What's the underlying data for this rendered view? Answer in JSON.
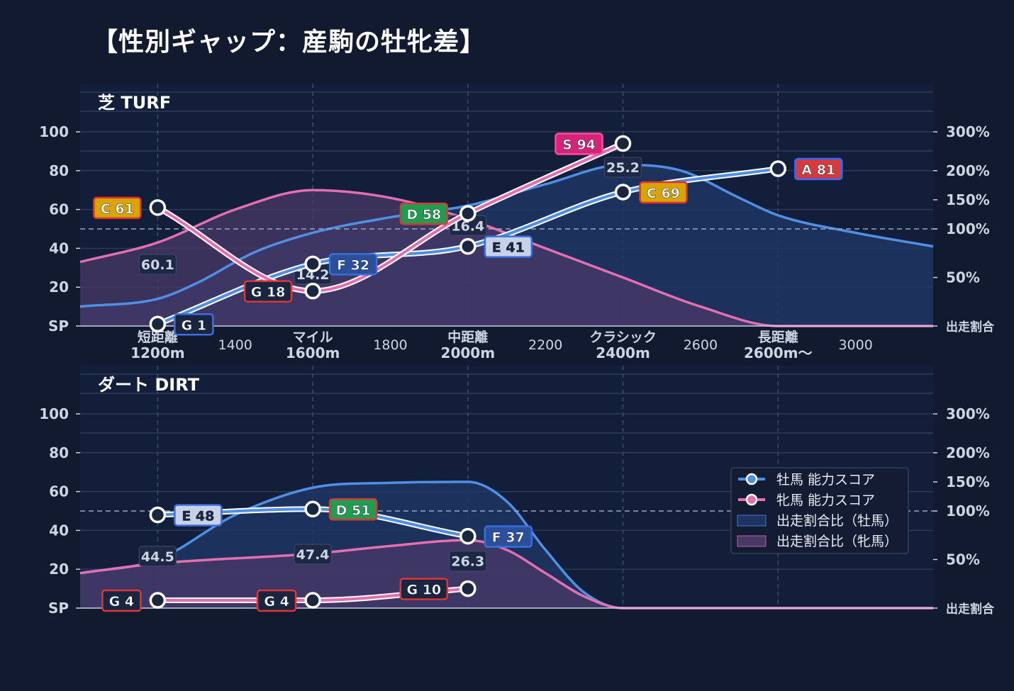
{
  "title": "【性別ギャップ：産駒の牡牝差】",
  "colors": {
    "background": "#111a2e",
    "plot_bg": "#131f3a",
    "male": "#4f8fe6",
    "female": "#e46fb0",
    "male_fill": "#1e3663",
    "female_fill": "#4a3a68",
    "grade_colors": {
      "S": "#d6237a",
      "A": "#d63a3a",
      "C": "#d9a400",
      "D": "#1f9e4f",
      "E": "#c8d2e6",
      "F": "#2b4f9a",
      "G": "#1a2540"
    },
    "grade_borders": {
      "S": "#ff4a9e",
      "A": "#2f6bff",
      "C": "#e03030",
      "D": "#d83838",
      "E": "#3b6fe0",
      "F": "#3b6fe0",
      "G_male": "#3b6fe0",
      "G_female": "#e03535"
    }
  },
  "chart_data": [
    {
      "type": "line",
      "panel_title": "芝 TURF",
      "x_ticks": [
        {
          "x": 1200,
          "lines": [
            "短距離",
            "1200m"
          ],
          "category": true
        },
        {
          "x": 1400,
          "lines": [
            "1400"
          ],
          "category": false
        },
        {
          "x": 1600,
          "lines": [
            "マイル",
            "1600m"
          ],
          "category": true
        },
        {
          "x": 1800,
          "lines": [
            "1800"
          ],
          "category": false
        },
        {
          "x": 2000,
          "lines": [
            "中距離",
            "2000m"
          ],
          "category": true
        },
        {
          "x": 2200,
          "lines": [
            "2200"
          ],
          "category": false
        },
        {
          "x": 2400,
          "lines": [
            "クラシック",
            "2400m"
          ],
          "category": true
        },
        {
          "x": 2600,
          "lines": [
            "2600"
          ],
          "category": false
        },
        {
          "x": 2800,
          "lines": [
            "長距離",
            "2600m〜"
          ],
          "category": true
        },
        {
          "x": 3000,
          "lines": [
            "3000"
          ],
          "category": false
        }
      ],
      "xlim": [
        1000,
        3200
      ],
      "y_left_ticks": [
        "SP",
        "20",
        "40",
        "60",
        "80",
        "100"
      ],
      "y_right_ticks": [
        "出走割合",
        "50%",
        "100%",
        "150%",
        "200%",
        "300%"
      ],
      "ylim": [
        0,
        100
      ],
      "series": [
        {
          "name": "牡馬 能力スコア",
          "points": [
            {
              "x": 1200,
              "y": 1,
              "grade": "G"
            },
            {
              "x": 1600,
              "y": 32,
              "grade": "F"
            },
            {
              "x": 2000,
              "y": 41,
              "grade": "E"
            },
            {
              "x": 2400,
              "y": 69,
              "grade": "C"
            },
            {
              "x": 2800,
              "y": 81,
              "grade": "A"
            }
          ]
        },
        {
          "name": "牝馬 能力スコア",
          "points": [
            {
              "x": 1200,
              "y": 61,
              "grade": "C"
            },
            {
              "x": 1600,
              "y": 18,
              "grade": "G"
            },
            {
              "x": 2000,
              "y": 58,
              "grade": "D"
            },
            {
              "x": 2400,
              "y": 94,
              "grade": "S"
            }
          ]
        }
      ],
      "ratio_labels": [
        {
          "x": 1200,
          "label": "60.1"
        },
        {
          "x": 1600,
          "label": "14.2"
        },
        {
          "x": 2000,
          "label": "16.4"
        },
        {
          "x": 2400,
          "label": "25.2"
        }
      ],
      "male_area": [
        [
          1000,
          10
        ],
        [
          1200,
          14
        ],
        [
          1300,
          22
        ],
        [
          1450,
          38
        ],
        [
          1600,
          48
        ],
        [
          1800,
          56
        ],
        [
          2000,
          62
        ],
        [
          2200,
          73
        ],
        [
          2400,
          83
        ],
        [
          2550,
          80
        ],
        [
          2700,
          66
        ],
        [
          2800,
          57
        ],
        [
          3000,
          48
        ],
        [
          3200,
          41
        ]
      ],
      "female_area": [
        [
          1000,
          33
        ],
        [
          1200,
          43
        ],
        [
          1400,
          60
        ],
        [
          1600,
          70
        ],
        [
          1800,
          66
        ],
        [
          2000,
          55
        ],
        [
          2200,
          40
        ],
        [
          2400,
          25
        ],
        [
          2600,
          10
        ],
        [
          2800,
          0
        ],
        [
          3200,
          0
        ]
      ],
      "ref_line_y": 50
    },
    {
      "type": "line",
      "panel_title": "ダート DIRT",
      "x_ticks": [
        {
          "x": 1200,
          "lines": [],
          "category": true
        },
        {
          "x": 1600,
          "lines": [],
          "category": true
        },
        {
          "x": 2000,
          "lines": [],
          "category": true
        },
        {
          "x": 2400,
          "lines": [],
          "category": true
        },
        {
          "x": 2800,
          "lines": [],
          "category": true
        }
      ],
      "xlim": [
        1000,
        3200
      ],
      "y_left_ticks": [
        "SP",
        "20",
        "40",
        "60",
        "80",
        "100"
      ],
      "y_right_ticks": [
        "出走割合",
        "50%",
        "100%",
        "150%",
        "200%",
        "300%"
      ],
      "ylim": [
        0,
        100
      ],
      "series": [
        {
          "name": "牡馬 能力スコア",
          "points": [
            {
              "x": 1200,
              "y": 48,
              "grade": "E"
            },
            {
              "x": 1600,
              "y": 51,
              "grade": "D"
            },
            {
              "x": 2000,
              "y": 37,
              "grade": "F"
            }
          ]
        },
        {
          "name": "牝馬 能力スコア",
          "points": [
            {
              "x": 1200,
              "y": 4,
              "grade": "G"
            },
            {
              "x": 1600,
              "y": 4,
              "grade": "G"
            },
            {
              "x": 2000,
              "y": 10,
              "grade": "G"
            }
          ]
        }
      ],
      "ratio_labels": [
        {
          "x": 1200,
          "label": "44.5"
        },
        {
          "x": 1600,
          "label": "47.4"
        },
        {
          "x": 2000,
          "label": "26.3"
        }
      ],
      "male_area": [
        [
          1000,
          18
        ],
        [
          1200,
          25
        ],
        [
          1400,
          48
        ],
        [
          1600,
          62
        ],
        [
          1800,
          64.5
        ],
        [
          2000,
          65
        ],
        [
          2100,
          55
        ],
        [
          2200,
          30
        ],
        [
          2300,
          8
        ],
        [
          2400,
          0
        ],
        [
          3200,
          0
        ]
      ],
      "female_area": [
        [
          1000,
          18
        ],
        [
          1200,
          23
        ],
        [
          1600,
          28
        ],
        [
          1800,
          32
        ],
        [
          2000,
          35
        ],
        [
          2100,
          30
        ],
        [
          2200,
          18
        ],
        [
          2300,
          6
        ],
        [
          2400,
          0
        ],
        [
          3200,
          0
        ]
      ],
      "ref_line_y": 50,
      "legend": {
        "position": "right",
        "items": [
          {
            "kind": "line",
            "color_key": "male",
            "label": "牡馬 能力スコア"
          },
          {
            "kind": "line",
            "color_key": "female",
            "label": "牝馬 能力スコア"
          },
          {
            "kind": "patch",
            "color_key": "male_fill",
            "label": "出走割合比（牡馬）"
          },
          {
            "kind": "patch",
            "color_key": "female_fill",
            "label": "出走割合比（牝馬）"
          }
        ]
      }
    }
  ]
}
